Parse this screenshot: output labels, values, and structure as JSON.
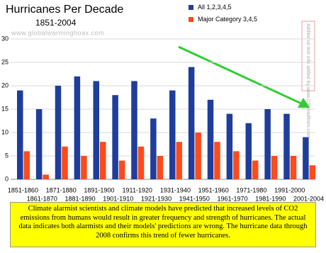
{
  "chart_data": {
    "type": "bar",
    "title": "Hurricanes Per Decade",
    "subtitle": "1851-2004",
    "watermark": "www.globalwarminghoax.com",
    "side_note": "Additional text info added by www.C3Headlines.com",
    "annotation": "Climate alarmist scientists and climate models have predicted that increased levels of CO2 emissions from humans would result in greater frequency and strength of hurricanes. The actual data indicates both alarmists and their models' predictions are wrong. The hurricane data through 2008 confirms this trend of fewer hurricanes.",
    "categories": [
      "1851-1860",
      "1861-1870",
      "1871-1880",
      "1881-1890",
      "1891-1900",
      "1901-1910",
      "1911-1920",
      "1921-1930",
      "1931-1940",
      "1941-1950",
      "1951-1960",
      "1961-1970",
      "1971-1980",
      "1981-1990",
      "1991-2000",
      "2001-2004"
    ],
    "series": [
      {
        "name": "All 1,2,3,4,5",
        "color": "#1f3d9a",
        "values": [
          19,
          15,
          20,
          22,
          21,
          18,
          21,
          13,
          19,
          24,
          17,
          14,
          12,
          15,
          14,
          9
        ]
      },
      {
        "name": "Major Category 3,4,5",
        "color": "#ff4a1c",
        "values": [
          6,
          1,
          7,
          5,
          8,
          4,
          7,
          5,
          8,
          10,
          8,
          6,
          4,
          5,
          5,
          3
        ]
      }
    ],
    "ylim": [
      0,
      30
    ],
    "yticks": [
      0,
      5,
      10,
      15,
      20,
      25,
      30
    ],
    "grid": true
  }
}
